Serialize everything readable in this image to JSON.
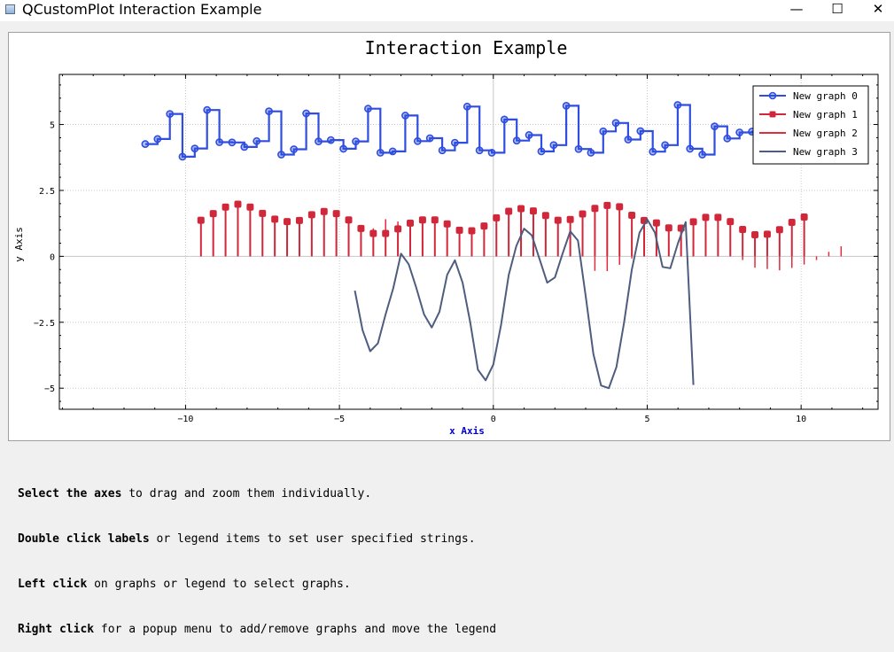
{
  "window": {
    "title": "QCustomPlot Interaction Example",
    "minimize_glyph": "—",
    "maximize_glyph": "☐",
    "close_glyph": "✕"
  },
  "chart_data": {
    "type": "line",
    "title": "Interaction Example",
    "xlabel": "x Axis",
    "ylabel": "y Axis",
    "xlim": [
      -14.1,
      12.5
    ],
    "ylim": [
      -5.8,
      6.9
    ],
    "xticks": [
      -10,
      -5,
      0,
      5,
      10
    ],
    "xtick_labels": [
      "−10",
      "−5",
      "0",
      "5",
      "10"
    ],
    "yticks": [
      -5,
      -2.5,
      0,
      2.5,
      5
    ],
    "ytick_labels": [
      "−5",
      "−2.5",
      "0",
      "2.5",
      "5"
    ],
    "grid": true,
    "legend_position": "top-right",
    "series": [
      {
        "name": "New graph 0",
        "style": "step-left-with-circles",
        "color": "#2f4ee0",
        "x": [
          -11.31,
          -10.91,
          -10.51,
          -10.1,
          -9.7,
          -9.3,
          -8.9,
          -8.49,
          -8.09,
          -7.69,
          -7.29,
          -6.89,
          -6.48,
          -6.08,
          -5.68,
          -5.28,
          -4.87,
          -4.47,
          -4.07,
          -3.67,
          -3.27,
          -2.86,
          -2.46,
          -2.06,
          -1.66,
          -1.25,
          -0.85,
          -0.45,
          -0.05,
          0.36,
          0.76,
          1.16,
          1.56,
          1.96,
          2.37,
          2.77,
          3.17,
          3.57,
          3.98,
          4.38,
          4.78,
          5.18,
          5.58,
          5.99,
          6.39,
          6.79,
          7.19,
          7.6,
          8.0,
          8.4,
          8.8,
          9.2,
          9.61,
          10.01
        ],
        "y": [
          4.26,
          4.45,
          5.4,
          3.78,
          4.09,
          5.55,
          4.33,
          4.32,
          4.15,
          4.37,
          5.5,
          3.86,
          4.06,
          5.42,
          4.36,
          4.41,
          4.08,
          4.36,
          5.6,
          3.93,
          3.98,
          5.34,
          4.37,
          4.48,
          4.02,
          4.31,
          5.68,
          4.02,
          3.93,
          5.19,
          4.39,
          4.6,
          3.98,
          4.22,
          5.71,
          4.07,
          3.93,
          4.74,
          5.06,
          4.43,
          4.75,
          3.97,
          4.22,
          5.74,
          4.08,
          3.86,
          4.93,
          4.47,
          4.7,
          4.73,
          4.72,
          4.64,
          4.62,
          4.6
        ]
      },
      {
        "name": "New graph 1",
        "style": "impulse-with-squares",
        "color": "#d0283a",
        "x": [
          -9.5,
          -9.1,
          -8.7,
          -8.3,
          -7.9,
          -7.5,
          -7.1,
          -6.7,
          -6.3,
          -5.9,
          -5.5,
          -5.1,
          -4.7,
          -4.3,
          -3.9,
          -3.5,
          -3.1,
          -2.7,
          -2.3,
          -1.9,
          -1.5,
          -1.1,
          -0.7,
          -0.3,
          0.1,
          0.5,
          0.9,
          1.3,
          1.7,
          2.1,
          2.5,
          2.9,
          3.3,
          3.7,
          4.1,
          4.5,
          4.9,
          5.3,
          5.7,
          6.1,
          6.5,
          6.9,
          7.3,
          7.7,
          8.1,
          8.5,
          8.9,
          9.3,
          9.7,
          10.1
        ],
        "y": [
          1.37,
          1.62,
          1.87,
          1.98,
          1.87,
          1.63,
          1.41,
          1.32,
          1.36,
          1.58,
          1.7,
          1.62,
          1.38,
          1.06,
          0.87,
          0.87,
          1.04,
          1.26,
          1.38,
          1.38,
          1.23,
          0.99,
          0.97,
          1.15,
          1.46,
          1.71,
          1.81,
          1.72,
          1.55,
          1.37,
          1.4,
          1.61,
          1.82,
          1.93,
          1.88,
          1.56,
          1.36,
          1.27,
          1.08,
          1.07,
          1.31,
          1.48,
          1.48,
          1.32,
          1.02,
          0.82,
          0.84,
          1.01,
          1.29,
          1.49
        ]
      },
      {
        "name": "New graph 2",
        "style": "impulse",
        "color": "#e02c3c",
        "x": [
          -9.5,
          -9.1,
          -8.7,
          -8.3,
          -7.9,
          -7.5,
          -7.1,
          -6.7,
          -6.3,
          -5.9,
          -5.5,
          -5.1,
          -4.7,
          -4.3,
          -3.9,
          -3.5,
          -3.1,
          -2.7,
          -2.3,
          -1.9,
          -1.5,
          -1.1,
          -0.7,
          -0.3,
          0.1,
          0.5,
          0.9,
          1.3,
          1.7,
          2.1,
          2.5,
          2.9,
          3.3,
          3.7,
          4.1,
          4.5,
          4.9,
          5.3,
          5.7,
          6.1,
          6.5,
          6.9,
          7.3,
          7.7,
          8.1,
          8.5,
          8.9,
          9.3,
          9.7,
          10.1,
          10.5,
          10.9,
          11.3
        ],
        "y": [
          1.0,
          1.0,
          0.98,
          1.21,
          1.37,
          1.3,
          0.53,
          0.52,
          0.2,
          0.41,
          0.76,
          1.37,
          0.91,
          1.0,
          1.06,
          1.41,
          1.32,
          0.82,
          0.65,
          0.38,
          0.11,
          0.12,
          0.13,
          0.14,
          0.98,
          1.22,
          1.72,
          1.53,
          1.42,
          1.19,
          0.76,
          0.38,
          -0.55,
          -0.56,
          -0.32,
          -0.08,
          0.26,
          0.4,
          0.46,
          0.45,
          0.61,
          0.76,
          0.71,
          0.35,
          -0.14,
          -0.43,
          -0.48,
          -0.53,
          -0.44,
          -0.31,
          -0.14,
          0.17,
          0.38
        ]
      },
      {
        "name": "New graph 3",
        "style": "line",
        "color": "#4e5d7e",
        "x": [
          -4.5,
          -4.25,
          -4.0,
          -3.75,
          -3.5,
          -3.25,
          -3.0,
          -2.75,
          -2.5,
          -2.25,
          -2.0,
          -1.75,
          -1.5,
          -1.25,
          -1.0,
          -0.75,
          -0.5,
          -0.25,
          0.0,
          0.25,
          0.5,
          0.75,
          1.0,
          1.25,
          1.5,
          1.75,
          2.0,
          2.25,
          2.5,
          2.75,
          3.0,
          3.25,
          3.5,
          3.75,
          4.0,
          4.25,
          4.5,
          4.75,
          5.0,
          5.25,
          5.5,
          5.75,
          6.0,
          6.25,
          6.5
        ],
        "y": [
          -1.3,
          -2.8,
          -3.6,
          -3.3,
          -2.2,
          -1.2,
          0.1,
          -0.3,
          -1.2,
          -2.2,
          -2.7,
          -2.1,
          -0.7,
          -0.15,
          -1.0,
          -2.5,
          -4.3,
          -4.7,
          -4.1,
          -2.6,
          -0.7,
          0.4,
          1.05,
          0.8,
          -0.1,
          -1.0,
          -0.8,
          0.1,
          0.95,
          0.6,
          -1.5,
          -3.7,
          -4.9,
          -5.0,
          -4.2,
          -2.5,
          -0.5,
          0.9,
          1.4,
          0.9,
          -0.4,
          -0.45,
          0.5,
          1.3,
          -4.88
        ]
      }
    ]
  },
  "instructions": [
    {
      "bold": "Select the axes",
      "rest": " to drag and zoom them individually."
    },
    {
      "bold": "Double click labels",
      "rest": " or legend items to set user specified strings."
    },
    {
      "bold": "Left click",
      "rest": " on graphs or legend to select graphs."
    },
    {
      "bold": "Right click",
      "rest": " for a popup menu to add/remove graphs and move the legend"
    }
  ]
}
